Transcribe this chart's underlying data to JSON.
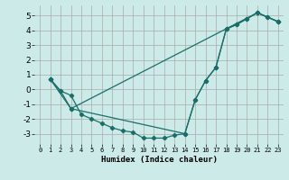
{
  "xlabel": "Humidex (Indice chaleur)",
  "bg_color": "#cceae7",
  "grid_color": "#aaaaaa",
  "line_color": "#1a6e6a",
  "xlim": [
    -0.5,
    23.5
  ],
  "ylim": [
    -3.7,
    5.7
  ],
  "yticks": [
    -3,
    -2,
    -1,
    0,
    1,
    2,
    3,
    4,
    5
  ],
  "xticks": [
    0,
    1,
    2,
    3,
    4,
    5,
    6,
    7,
    8,
    9,
    10,
    11,
    12,
    13,
    14,
    15,
    16,
    17,
    18,
    19,
    20,
    21,
    22,
    23
  ],
  "curve1_x": [
    1,
    2,
    3,
    4,
    5,
    6,
    7,
    8,
    9,
    10,
    11,
    12,
    13,
    14,
    15,
    16,
    17,
    18,
    19,
    20,
    21,
    22,
    23
  ],
  "curve1_y": [
    0.7,
    -0.1,
    -0.4,
    -1.7,
    -2.0,
    -2.3,
    -2.6,
    -2.8,
    -2.9,
    -3.3,
    -3.3,
    -3.3,
    -3.1,
    -3.0,
    -0.7,
    0.6,
    1.5,
    4.1,
    4.4,
    4.8,
    5.2,
    4.9,
    4.6
  ],
  "curve2_x": [
    1,
    2,
    3,
    14,
    15,
    16,
    17,
    18,
    19,
    20,
    21,
    22,
    23
  ],
  "curve2_y": [
    0.7,
    -0.1,
    -1.3,
    -3.0,
    -0.7,
    0.6,
    1.5,
    4.1,
    4.4,
    4.8,
    5.2,
    4.9,
    4.6
  ],
  "curve3_x": [
    1,
    3,
    21,
    23
  ],
  "curve3_y": [
    0.7,
    -1.3,
    5.2,
    4.6
  ]
}
